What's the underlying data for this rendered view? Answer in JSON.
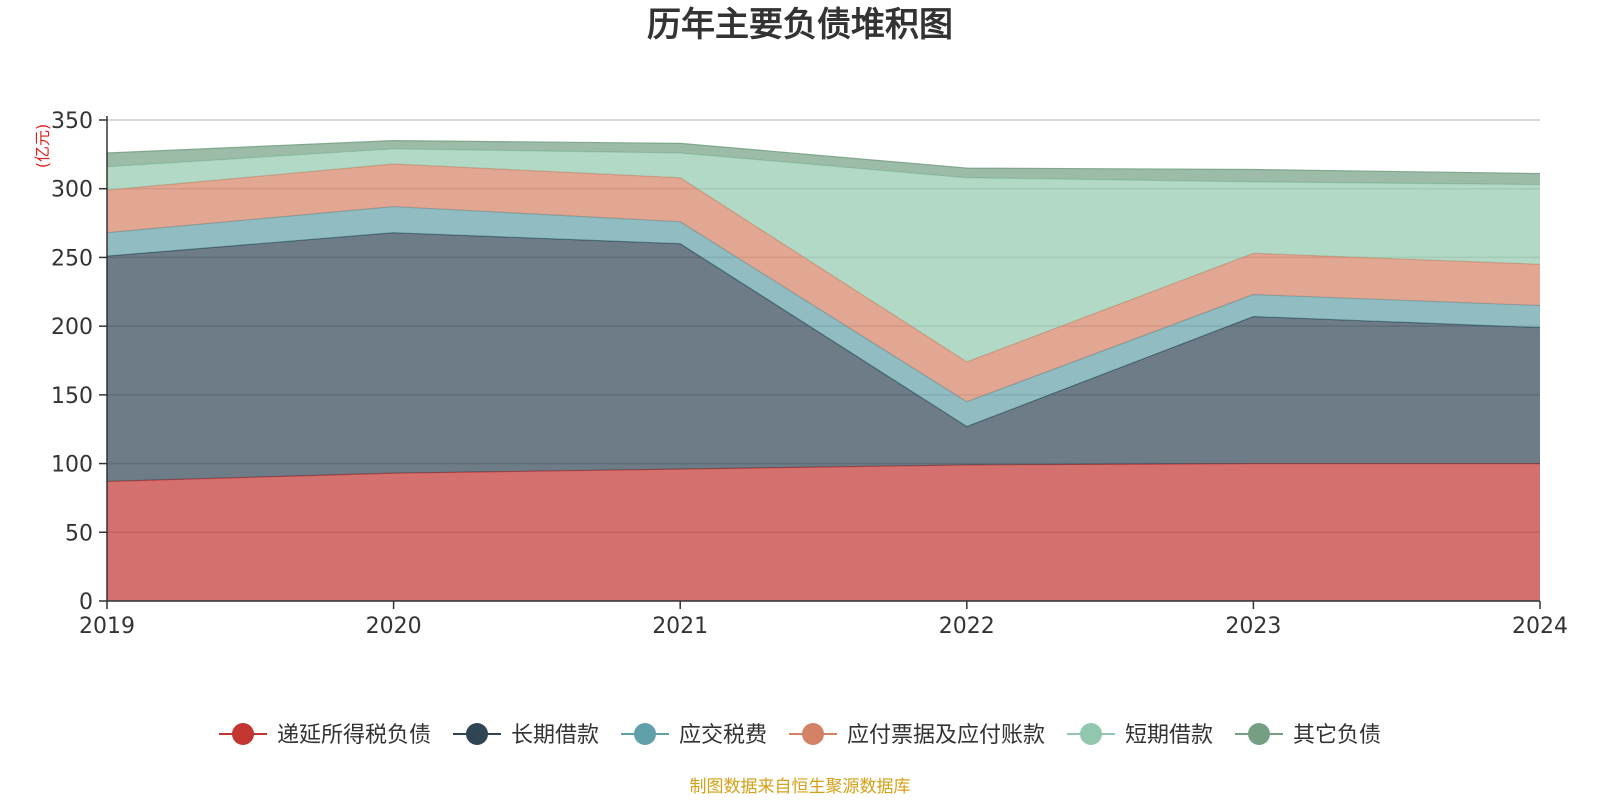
{
  "chart_data": {
    "type": "area",
    "stacked": true,
    "title": "历年主要负债堆积图",
    "unit_label": "(亿元)",
    "source_note": "制图数据来自恒生聚源数据库",
    "categories": [
      "2019",
      "2020",
      "2021",
      "2022",
      "2023",
      "2024"
    ],
    "ylim": [
      0,
      350
    ],
    "yticks": [
      0,
      50,
      100,
      150,
      200,
      250,
      300,
      350
    ],
    "grid": true,
    "legend_position": "bottom",
    "series": [
      {
        "name": "递延所得税负债",
        "color": "#c23531",
        "values": [
          87,
          93,
          96,
          99,
          100,
          100
        ]
      },
      {
        "name": "长期借款",
        "color": "#2f4554",
        "values": [
          164,
          175,
          164,
          28,
          107,
          99
        ]
      },
      {
        "name": "应交税费",
        "color": "#61a0a8",
        "values": [
          17,
          19,
          16,
          18,
          16,
          16
        ]
      },
      {
        "name": "应付票据及应付账款",
        "color": "#d48265",
        "values": [
          31,
          31,
          32,
          29,
          30,
          30
        ]
      },
      {
        "name": "短期借款",
        "color": "#91c7ae",
        "values": [
          17,
          11,
          18,
          134,
          52,
          58
        ]
      },
      {
        "name": "其它负债",
        "color": "#749f83",
        "values": [
          10,
          6,
          7,
          7,
          9,
          8
        ]
      }
    ]
  }
}
